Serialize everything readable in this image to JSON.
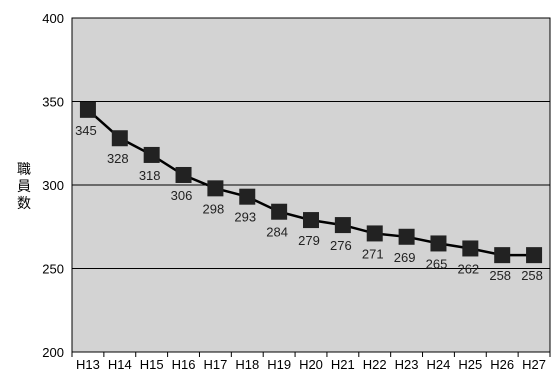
{
  "chart_data": {
    "type": "line",
    "title": "",
    "xlabel": "",
    "ylabel": "職員数",
    "ylim": [
      200,
      400
    ],
    "yticks": [
      "200",
      "250",
      "300",
      "350",
      "400"
    ],
    "grid": true,
    "categories": [
      "H13",
      "H14",
      "H15",
      "H16",
      "H17",
      "H18",
      "H19",
      "H20",
      "H21",
      "H22",
      "H23",
      "H24",
      "H25",
      "H26",
      "H27"
    ],
    "series": [
      {
        "values": [
          345,
          328,
          318,
          306,
          298,
          293,
          284,
          279,
          276,
          271,
          269,
          265,
          262,
          258,
          258
        ]
      }
    ],
    "data_labels": [
      "345",
      "328",
      "318",
      "306",
      "298",
      "293",
      "284",
      "279",
      "276",
      "271",
      "269",
      "265",
      "262",
      "258",
      "258"
    ],
    "colors": {
      "plot_bg": "#d3d3d3",
      "line": "#000000",
      "marker": "#222222"
    }
  }
}
